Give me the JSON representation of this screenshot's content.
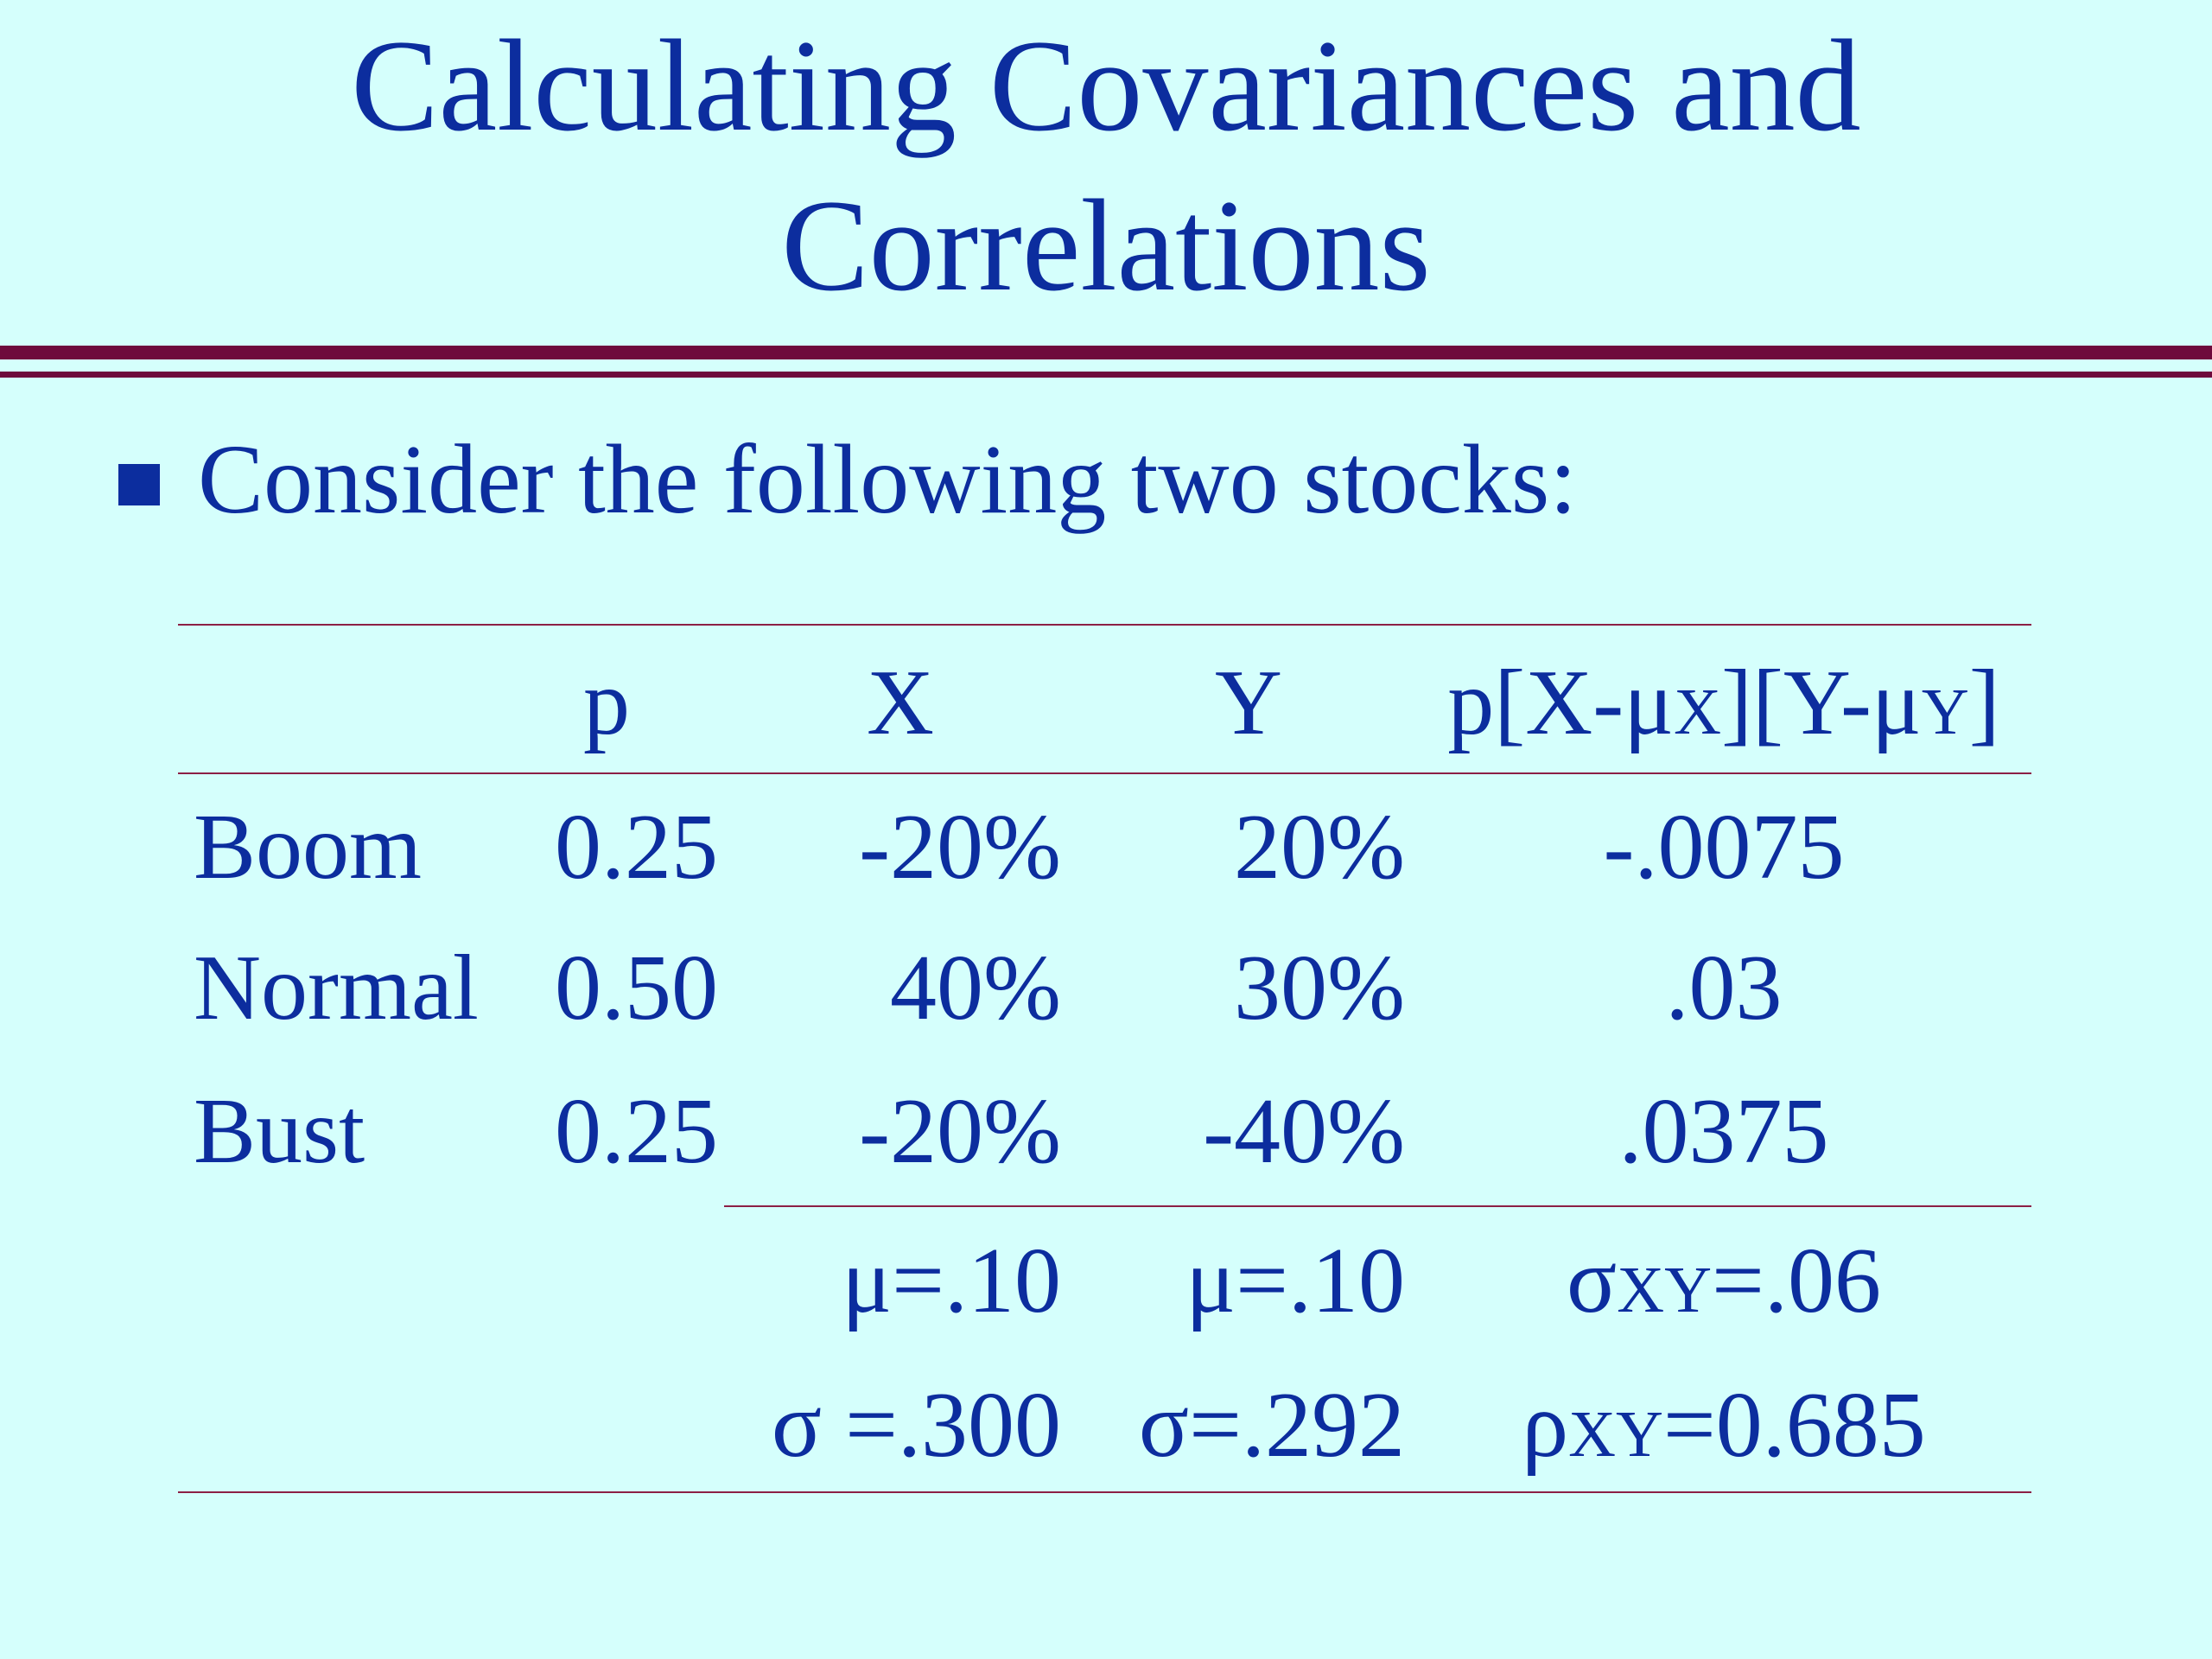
{
  "title": {
    "lines": [
      "Calculating Covariances and",
      "Correlations"
    ]
  },
  "bullet": "Consider the following two stocks:",
  "table": {
    "header": [
      "p",
      "X",
      "Y",
      [
        "p[X-μ",
        "X",
        "][Y-μ",
        "Y",
        "]"
      ]
    ],
    "rows": [
      [
        "Boom",
        "0.25",
        "-20%",
        "20%",
        "-.0075"
      ],
      [
        "Normal",
        "0.50",
        "40%",
        "30%",
        ".03"
      ],
      [
        "Bust",
        "0.25",
        "-20%",
        "-40%",
        ".0375"
      ]
    ],
    "summary": [
      [
        "μ=.10",
        "μ=.10",
        [
          "σ",
          "XY",
          "=.06"
        ]
      ],
      [
        "σ =.300",
        "σ=.292",
        [
          "ρ",
          "XY",
          "=0.685"
        ]
      ]
    ]
  }
}
